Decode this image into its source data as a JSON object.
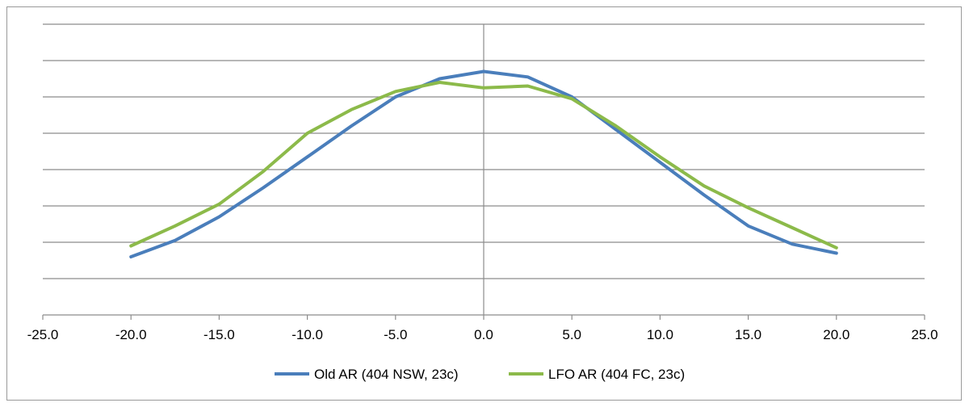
{
  "chart_data": {
    "type": "line",
    "x": [
      -20,
      -17.5,
      -15,
      -12.5,
      -10,
      -7.5,
      -5,
      -2.5,
      0,
      2.5,
      5,
      7.5,
      10,
      12.5,
      15,
      17.5,
      20
    ],
    "xlim": [
      -25,
      25
    ],
    "xticks": [
      "-25.0",
      "-20.0",
      "-15.0",
      "-10.0",
      "-5.0",
      "0.0",
      "5.0",
      "10.0",
      "15.0",
      "20.0",
      "25.0"
    ],
    "ylim": [
      0,
      8
    ],
    "y_tick_labels_shown": false,
    "grid": "horizontal",
    "legend_position": "bottom",
    "series": [
      {
        "name": "Old AR (404 NSW, 23c)",
        "color": "#4a7ebb",
        "values": [
          1.6,
          2.05,
          2.7,
          3.5,
          4.35,
          5.2,
          6.0,
          6.5,
          6.7,
          6.55,
          6.0,
          5.1,
          4.2,
          3.3,
          2.45,
          1.95,
          1.7
        ]
      },
      {
        "name": "LFO AR (404 FC, 23c)",
        "color": "#8cba4a",
        "values": [
          1.9,
          2.45,
          3.05,
          3.95,
          5.0,
          5.65,
          6.15,
          6.4,
          6.25,
          6.3,
          5.95,
          5.2,
          4.35,
          3.55,
          2.95,
          2.4,
          1.85
        ]
      }
    ]
  }
}
